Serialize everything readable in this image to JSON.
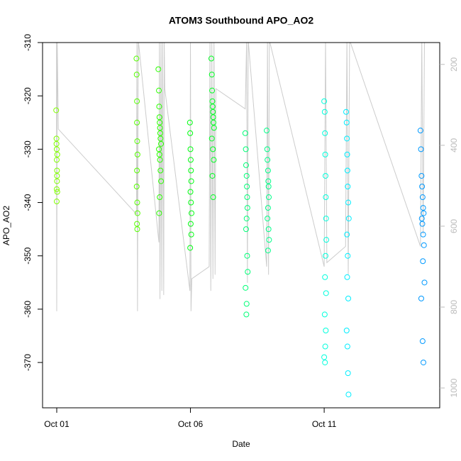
{
  "chart_data": {
    "type": "scatter",
    "title": "ATOM3 Southbound APO_AO2",
    "xlabel": "Date",
    "ylabel": "APO_AO2",
    "xlim": [
      0.47,
      15.32
    ],
    "xticks": [
      {
        "value": 1,
        "label": "Oct 01"
      },
      {
        "value": 6,
        "label": "Oct 06"
      },
      {
        "value": 11,
        "label": "Oct 11"
      }
    ],
    "ylim": [
      -378.5,
      -310
    ],
    "yticks": [
      -310,
      -320,
      -330,
      -340,
      -350,
      -360,
      -370
    ],
    "y2lim": [
      1049,
      146
    ],
    "y2ticks": [
      200,
      400,
      600,
      800,
      1000
    ],
    "y2tick_color": "#bbbbbb",
    "series": [
      {
        "type": "line",
        "axis": "y2",
        "color": "#cccccc",
        "x": [
          0.99,
          1.0,
          1.02,
          1.06,
          3.98,
          4.0,
          4.02,
          4.05,
          4.82,
          4.84,
          4.86,
          4.9,
          4.93,
          4.96,
          5.0,
          5.02,
          5.04,
          5.98,
          6.0,
          6.02,
          6.05,
          6.7,
          6.73,
          6.76,
          6.8,
          6.84,
          6.88,
          6.92,
          6.95,
          8.05,
          8.1,
          8.13,
          8.16,
          8.85,
          8.88,
          8.92,
          8.95,
          11.0,
          11.05,
          11.1,
          11.8,
          11.85,
          11.9,
          11.95,
          14.6,
          14.65,
          14.7,
          14.75
        ],
        "values": [
          140,
          810,
          140,
          360,
          570,
          140,
          810,
          140,
          640,
          140,
          780,
          140,
          760,
          140,
          770,
          140,
          260,
          760,
          140,
          810,
          730,
          700,
          140,
          760,
          140,
          730,
          140,
          720,
          260,
          310,
          140,
          740,
          140,
          700,
          140,
          720,
          140,
          700,
          140,
          690,
          650,
          140,
          720,
          140,
          650,
          140,
          620,
          140
        ]
      },
      {
        "color": "#80ff00",
        "x": [
          0.98,
          0.99,
          1.0,
          1.0,
          1.01,
          1.01,
          1.02,
          1.0,
          0.99,
          1.02,
          1.01,
          1.0
        ],
        "values": [
          -322.7,
          -328,
          -330,
          -332,
          -334,
          -336,
          -338,
          -339.8,
          -329,
          -331,
          -335,
          -337.5
        ]
      },
      {
        "color": "#55ff00",
        "x": [
          3.98,
          3.99,
          4.0,
          4.0,
          4.01,
          4.02,
          4.0,
          3.99,
          4.01,
          4.02,
          4.0,
          4.01
        ],
        "values": [
          -313,
          -316,
          -321,
          -325,
          -328.5,
          -331,
          -334,
          -337,
          -340,
          -342,
          -344,
          -345
        ]
      },
      {
        "color": "#2bff00",
        "x": [
          4.8,
          4.82,
          4.83,
          4.84,
          4.85,
          4.86,
          4.87,
          4.88,
          4.9,
          4.82,
          4.84,
          4.86,
          4.88,
          4.9,
          4.85,
          4.83
        ],
        "values": [
          -315,
          -319,
          -322,
          -324,
          -325,
          -326,
          -327,
          -328,
          -329,
          -330,
          -331,
          -332,
          -334,
          -336,
          -339,
          -342
        ]
      },
      {
        "color": "#00ff11",
        "x": [
          5.98,
          5.99,
          6.0,
          6.01,
          6.02,
          6.03,
          6.0,
          6.02,
          6.04,
          6.01,
          6.03,
          5.99
        ],
        "values": [
          -325,
          -327,
          -330,
          -332,
          -334,
          -336,
          -338,
          -340,
          -342,
          -344,
          -346,
          -348.5
        ]
      },
      {
        "color": "#00ff22",
        "x": [
          6.78,
          6.8,
          6.81,
          6.82,
          6.83,
          6.84,
          6.85,
          6.86,
          6.88,
          6.8,
          6.84,
          6.87,
          6.82,
          6.85
        ],
        "values": [
          -313,
          -316,
          -319,
          -321,
          -322,
          -323,
          -324,
          -325,
          -326,
          -328,
          -330,
          -332,
          -335,
          -339
        ]
      },
      {
        "color": "#00ff77",
        "x": [
          8.05,
          8.07,
          8.08,
          8.1,
          8.11,
          8.12,
          8.13,
          8.1,
          8.08,
          8.12,
          8.14,
          8.06,
          8.1,
          8.09
        ],
        "values": [
          -327,
          -330,
          -333,
          -335,
          -337,
          -339,
          -341,
          -343,
          -345,
          -350,
          -353,
          -356,
          -359,
          -361
        ]
      },
      {
        "color": "#00ff88",
        "x": [
          8.85,
          8.87,
          8.88,
          8.9,
          8.91,
          8.92,
          8.93,
          8.9,
          8.88,
          8.92,
          8.94,
          8.9
        ],
        "values": [
          -326.5,
          -330,
          -332,
          -334,
          -336,
          -337,
          -339,
          -341,
          -343,
          -345,
          -347,
          -349
        ]
      },
      {
        "color": "#00ffdd",
        "x": [
          11.0,
          11.02,
          11.03,
          11.04,
          11.05,
          11.06,
          11.07,
          11.08,
          11.05,
          11.03,
          11.07,
          11.02,
          11.06,
          11.04,
          11.0,
          11.03
        ],
        "values": [
          -321,
          -323,
          -327,
          -331,
          -335,
          -339,
          -343,
          -347,
          -350,
          -354,
          -357,
          -361,
          -364,
          -367,
          -369,
          -370
        ]
      },
      {
        "color": "#00eeff",
        "x": [
          11.82,
          11.84,
          11.85,
          11.86,
          11.87,
          11.88,
          11.9,
          11.92,
          11.85,
          11.88,
          11.86,
          11.9,
          11.84,
          11.87,
          11.89,
          11.91
        ],
        "values": [
          -323,
          -325,
          -328,
          -331,
          -334,
          -337,
          -340,
          -343,
          -346,
          -350,
          -354,
          -358,
          -364,
          -367,
          -372,
          -376
        ]
      },
      {
        "color": "#0099ff",
        "x": [
          14.6,
          14.62,
          14.64,
          14.66,
          14.68,
          14.7,
          14.72,
          14.65,
          14.67,
          14.7,
          14.73,
          14.69,
          14.75,
          14.63,
          14.68,
          14.71
        ],
        "values": [
          -326.5,
          -330,
          -335,
          -337,
          -339,
          -341,
          -342,
          -343,
          -344,
          -346,
          -348,
          -351,
          -355,
          -358,
          -366,
          -370
        ]
      }
    ]
  }
}
